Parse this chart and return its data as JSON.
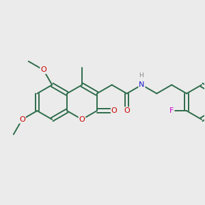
{
  "bg": "#ebebeb",
  "bond_color": "#2d6b4a",
  "bond_lw": 1.4,
  "dbo": 0.028,
  "atom_colors": {
    "O": "#cc0000",
    "N": "#1a1acc",
    "F": "#cc00cc",
    "H": "#888888"
  },
  "fs": 8.0,
  "fs_nh": 7.5
}
